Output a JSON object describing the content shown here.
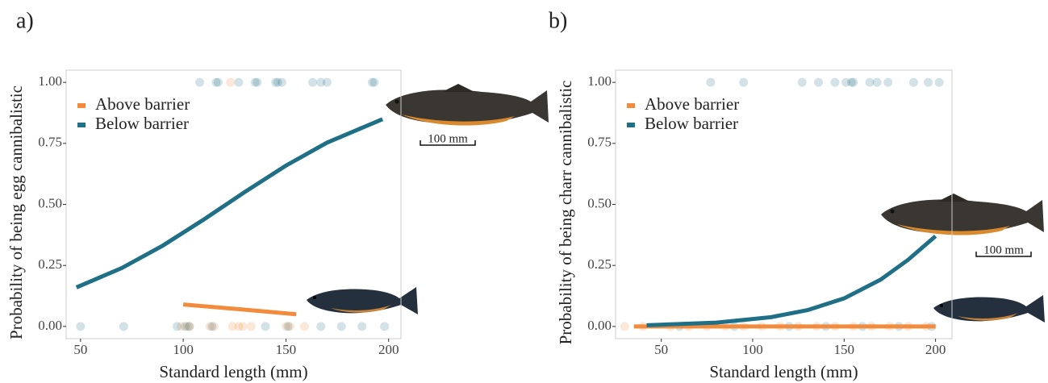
{
  "chart_data": [
    {
      "type": "line",
      "panel_label": "a)",
      "x_label": "Standard length (mm)",
      "y_label": "Probability of being egg cannibalistic",
      "scale_label": "100 mm",
      "legend": "upper left",
      "xlim": [
        43,
        206
      ],
      "ylim": [
        -0.05,
        1.05
      ],
      "xticks": [
        50,
        100,
        150,
        200
      ],
      "yticks": [
        {
          "value": 0,
          "label": "0.00"
        },
        {
          "value": 0.25,
          "label": "0.25"
        },
        {
          "value": 0.5,
          "label": "0.50"
        },
        {
          "value": 0.75,
          "label": "0.75"
        },
        {
          "value": 1,
          "label": "1.00"
        }
      ],
      "series": [
        {
          "name": "Above barrier",
          "color": "#f28b3c",
          "x": [
            100,
            128,
            155
          ],
          "values": [
            0.09,
            0.07,
            0.05
          ]
        },
        {
          "name": "Below barrier",
          "color": "#1f6f86",
          "x": [
            48,
            70,
            90,
            110,
            130,
            150,
            170,
            197
          ],
          "values": [
            0.16,
            0.239,
            0.331,
            0.438,
            0.551,
            0.659,
            0.753,
            0.849
          ]
        }
      ],
      "observations": [
        {
          "color": "#f28b3c",
          "x": [
            123,
            99,
            102,
            103,
            113,
            115,
            124,
            127,
            129,
            133,
            150,
            152,
            159
          ],
          "values": [
            1,
            0,
            0,
            0,
            0,
            0,
            0,
            0,
            0,
            0,
            0,
            0,
            0
          ]
        },
        {
          "color": "#1f6f86",
          "x": [
            108,
            116,
            117,
            127,
            135,
            136,
            145,
            146,
            148,
            163,
            167,
            170,
            192,
            193,
            50,
            71,
            97,
            101,
            103,
            114,
            140,
            151,
            167,
            177,
            187,
            198
          ],
          "values": [
            1,
            1,
            1,
            1,
            1,
            1,
            1,
            1,
            1,
            1,
            1,
            1,
            1,
            1,
            0,
            0,
            0,
            0,
            0,
            0,
            0,
            0,
            0,
            0,
            0,
            0
          ]
        }
      ]
    },
    {
      "type": "line",
      "panel_label": "b)",
      "x_label": "Standard length (mm)",
      "y_label": "Probability of being charr cannibalistic",
      "scale_label": "100 mm",
      "legend": "upper left",
      "xlim": [
        25,
        209
      ],
      "ylim": [
        -0.05,
        1.05
      ],
      "xticks": [
        50,
        100,
        150,
        200
      ],
      "yticks": [
        {
          "value": 0,
          "label": "0.00"
        },
        {
          "value": 0.25,
          "label": "0.25"
        },
        {
          "value": 0.5,
          "label": "0.50"
        },
        {
          "value": 0.75,
          "label": "0.75"
        },
        {
          "value": 1,
          "label": "1.00"
        }
      ],
      "series": [
        {
          "name": "Above barrier",
          "color": "#f28b3c",
          "x": [
            35,
            200
          ],
          "values": [
            0,
            0
          ]
        },
        {
          "name": "Below barrier",
          "color": "#1f6f86",
          "x": [
            42,
            80,
            110,
            130,
            150,
            170,
            185,
            200
          ],
          "values": [
            0.005,
            0.0155,
            0.038,
            0.067,
            0.115,
            0.192,
            0.273,
            0.37
          ]
        }
      ],
      "observations": [
        {
          "color": "#f28b3c",
          "x": [
            30,
            40,
            55,
            65,
            75,
            85,
            95,
            105,
            115,
            125,
            135,
            145,
            155,
            165,
            175,
            185,
            195
          ],
          "values": [
            0,
            0,
            0,
            0,
            0,
            0,
            0,
            0,
            0,
            0,
            0,
            0,
            0,
            0,
            0,
            0,
            0
          ]
        },
        {
          "color": "#1f6f86",
          "x": [
            77,
            95,
            127,
            136,
            145,
            151,
            154,
            155,
            164,
            168,
            174,
            188,
            196,
            202,
            60,
            90,
            120,
            140,
            160,
            180,
            198
          ],
          "values": [
            1,
            1,
            1,
            1,
            1,
            1,
            1,
            1,
            1,
            1,
            1,
            1,
            1,
            1,
            0,
            0,
            0,
            0,
            0,
            0,
            0
          ]
        }
      ]
    }
  ]
}
